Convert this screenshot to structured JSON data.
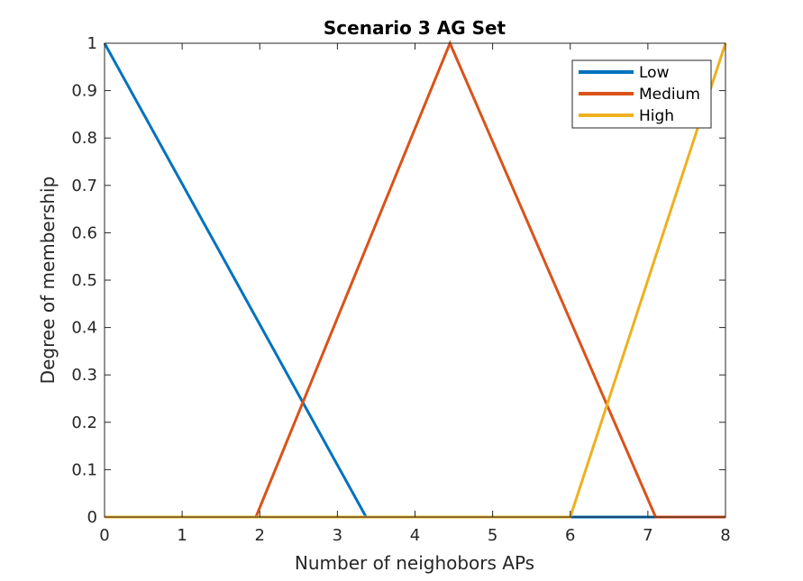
{
  "chart_data": {
    "type": "line",
    "title": "Scenario 3 AG Set",
    "xlabel": "Number of neighobors APs",
    "ylabel": "Degree of membership",
    "xlim": [
      0,
      8
    ],
    "ylim": [
      0,
      1
    ],
    "xticks": [
      0,
      1,
      2,
      3,
      4,
      5,
      6,
      7,
      8
    ],
    "yticks": [
      0,
      0.1,
      0.2,
      0.3,
      0.4,
      0.5,
      0.6,
      0.7,
      0.8,
      0.9,
      1
    ],
    "legend_position": "top-right",
    "grid": false,
    "series": [
      {
        "name": "Low",
        "color": "#0072BD",
        "x": [
          0,
          3.37,
          8
        ],
        "y": [
          1,
          0,
          0
        ]
      },
      {
        "name": "Medium",
        "color": "#D95319",
        "x": [
          0,
          1.95,
          4.45,
          7.1,
          8
        ],
        "y": [
          0,
          0,
          1,
          0,
          0
        ]
      },
      {
        "name": "High",
        "color": "#EDB120",
        "x": [
          0,
          6.0,
          8
        ],
        "y": [
          0,
          0,
          1
        ]
      }
    ]
  }
}
